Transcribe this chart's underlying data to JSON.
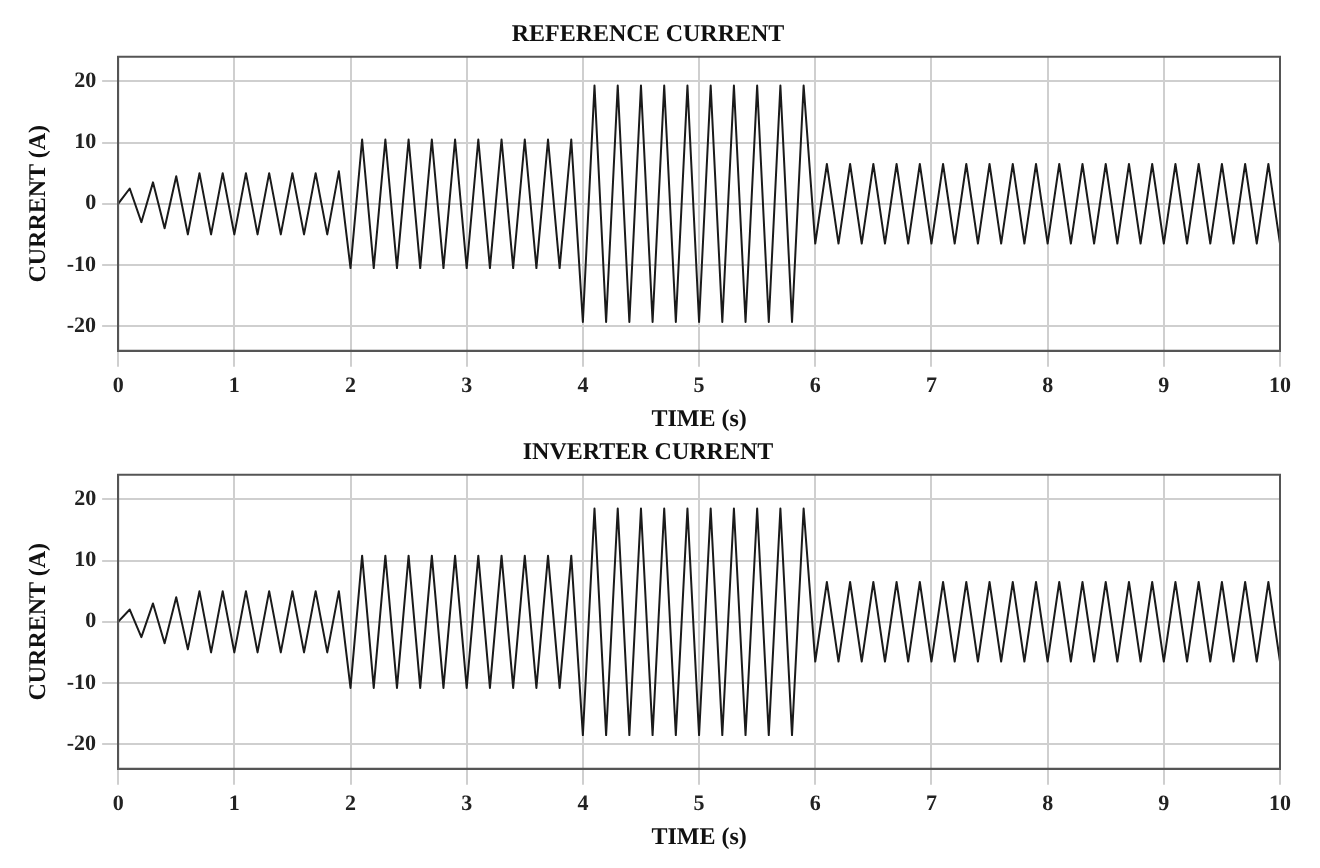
{
  "chart_data": [
    {
      "type": "line",
      "title": "REFERENCE CURRENT",
      "xlabel": "TIME (s)",
      "ylabel": "CURRENT (A)",
      "x": [
        0,
        0.1,
        0.2,
        0.3,
        0.4,
        0.5,
        0.6,
        0.7,
        0.8,
        0.9,
        1,
        1.1,
        1.2,
        1.3,
        1.4,
        1.5,
        1.6,
        1.7,
        1.8,
        1.9,
        2,
        2.1,
        2.2,
        2.3,
        2.4,
        2.5,
        2.6,
        2.7,
        2.8,
        2.9,
        3,
        3.1,
        3.2,
        3.3,
        3.4,
        3.5,
        3.6,
        3.7,
        3.8,
        3.9,
        4,
        4.1,
        4.2,
        4.3,
        4.4,
        4.5,
        4.6,
        4.7,
        4.8,
        4.9,
        5,
        5.1,
        5.2,
        5.3,
        5.4,
        5.5,
        5.6,
        5.7,
        5.8,
        5.9,
        6,
        6.1,
        6.2,
        6.3,
        6.4,
        6.5,
        6.6,
        6.7,
        6.8,
        6.9,
        7,
        7.1,
        7.2,
        7.3,
        7.4,
        7.5,
        7.6,
        7.7,
        7.8,
        7.9,
        8,
        8.1,
        8.2,
        8.3,
        8.4,
        8.5,
        8.6,
        8.7,
        8.8,
        8.9,
        9,
        9.1,
        9.2,
        9.3,
        9.4,
        9.5,
        9.6,
        9.7,
        9.8,
        9.9,
        10
      ],
      "series": [
        {
          "color": "#1a1a1a",
          "values": [
            0,
            2.5,
            -3,
            3.5,
            -4,
            4.5,
            -5,
            5,
            -5,
            5,
            -5,
            5,
            -5,
            5,
            -5,
            5,
            -5,
            5,
            -5,
            5.3,
            -10.5,
            10.5,
            -10.5,
            10.5,
            -10.5,
            10.5,
            -10.5,
            10.5,
            -10.5,
            10.5,
            -10.5,
            10.5,
            -10.5,
            10.5,
            -10.5,
            10.5,
            -10.5,
            10.5,
            -10.5,
            10.5,
            -19.3,
            19.3,
            -19.3,
            19.3,
            -19.3,
            19.3,
            -19.3,
            19.3,
            -19.3,
            19.3,
            -19.3,
            19.3,
            -19.3,
            19.3,
            -19.3,
            19.3,
            -19.3,
            19.3,
            -19.3,
            19.3,
            -6.5,
            6.5,
            -6.5,
            6.5,
            -6.5,
            6.5,
            -6.5,
            6.5,
            -6.5,
            6.5,
            -6.5,
            6.5,
            -6.5,
            6.5,
            -6.5,
            6.5,
            -6.5,
            6.5,
            -6.5,
            6.5,
            -6.5,
            6.5,
            -6.5,
            6.5,
            -6.5,
            6.5,
            -6.5,
            6.5,
            -6.5,
            6.5,
            -6.5,
            6.5,
            -6.5,
            6.5,
            -6.5,
            6.5,
            -6.5,
            6.5,
            -6.5,
            6.5,
            -6.5
          ]
        }
      ],
      "xlim": [
        0,
        10
      ],
      "xticks": [
        0,
        1,
        2,
        3,
        4,
        5,
        6,
        7,
        8,
        9,
        10
      ],
      "ylim": [
        -24,
        24
      ],
      "yticks": [
        -20,
        -10,
        0,
        10,
        20
      ],
      "grid": true,
      "marker": "none"
    },
    {
      "type": "line",
      "title": "INVERTER CURRENT",
      "xlabel": "TIME (s)",
      "ylabel": "CURRENT (A)",
      "x": [
        0,
        0.1,
        0.2,
        0.3,
        0.4,
        0.5,
        0.6,
        0.7,
        0.8,
        0.9,
        1,
        1.1,
        1.2,
        1.3,
        1.4,
        1.5,
        1.6,
        1.7,
        1.8,
        1.9,
        2,
        2.1,
        2.2,
        2.3,
        2.4,
        2.5,
        2.6,
        2.7,
        2.8,
        2.9,
        3,
        3.1,
        3.2,
        3.3,
        3.4,
        3.5,
        3.6,
        3.7,
        3.8,
        3.9,
        4,
        4.1,
        4.2,
        4.3,
        4.4,
        4.5,
        4.6,
        4.7,
        4.8,
        4.9,
        5,
        5.1,
        5.2,
        5.3,
        5.4,
        5.5,
        5.6,
        5.7,
        5.8,
        5.9,
        6,
        6.1,
        6.2,
        6.3,
        6.4,
        6.5,
        6.6,
        6.7,
        6.8,
        6.9,
        7,
        7.1,
        7.2,
        7.3,
        7.4,
        7.5,
        7.6,
        7.7,
        7.8,
        7.9,
        8,
        8.1,
        8.2,
        8.3,
        8.4,
        8.5,
        8.6,
        8.7,
        8.8,
        8.9,
        9,
        9.1,
        9.2,
        9.3,
        9.4,
        9.5,
        9.6,
        9.7,
        9.8,
        9.9,
        10
      ],
      "series": [
        {
          "color": "#1a1a1a",
          "values": [
            0,
            2,
            -2.5,
            3,
            -3.5,
            4,
            -4.5,
            5,
            -5,
            5,
            -5,
            5,
            -5,
            5,
            -5,
            5,
            -5,
            5,
            -5,
            5,
            -10.8,
            10.8,
            -10.8,
            10.8,
            -10.8,
            10.8,
            -10.8,
            10.8,
            -10.8,
            10.8,
            -10.8,
            10.8,
            -10.8,
            10.8,
            -10.8,
            10.8,
            -10.8,
            10.8,
            -10.8,
            10.8,
            -18.5,
            18.5,
            -18.5,
            18.5,
            -18.5,
            18.5,
            -18.5,
            18.5,
            -18.5,
            18.5,
            -18.5,
            18.5,
            -18.5,
            18.5,
            -18.5,
            18.5,
            -18.5,
            18.5,
            -18.5,
            18.5,
            -6.5,
            6.5,
            -6.5,
            6.5,
            -6.5,
            6.5,
            -6.5,
            6.5,
            -6.5,
            6.5,
            -6.5,
            6.5,
            -6.5,
            6.5,
            -6.5,
            6.5,
            -6.5,
            6.5,
            -6.5,
            6.5,
            -6.5,
            6.5,
            -6.5,
            6.5,
            -6.5,
            6.5,
            -6.5,
            6.5,
            -6.5,
            6.5,
            -6.5,
            6.5,
            -6.5,
            6.5,
            -6.5,
            6.5,
            -6.5,
            6.5,
            -6.5,
            6.5,
            -6.5
          ]
        }
      ],
      "xlim": [
        0,
        10
      ],
      "xticks": [
        0,
        1,
        2,
        3,
        4,
        5,
        6,
        7,
        8,
        9,
        10
      ],
      "ylim": [
        -24,
        24
      ],
      "yticks": [
        -20,
        -10,
        0,
        10,
        20
      ],
      "grid": true,
      "marker": "none"
    }
  ]
}
